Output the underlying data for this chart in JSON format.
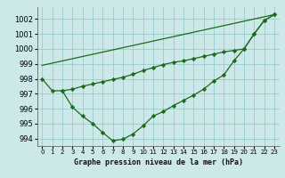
{
  "bg_color": "#cce8e8",
  "grid_color": "#99cccc",
  "line_color": "#1a6b1a",
  "marker_color": "#1a6b1a",
  "xlabel": "Graphe pression niveau de la mer (hPa)",
  "ylim": [
    993.5,
    1002.8
  ],
  "xlim": [
    -0.5,
    23.5
  ],
  "yticks": [
    994,
    995,
    996,
    997,
    998,
    999,
    1000,
    1001,
    1002
  ],
  "xticks": [
    0,
    1,
    2,
    3,
    4,
    5,
    6,
    7,
    8,
    9,
    10,
    11,
    12,
    13,
    14,
    15,
    16,
    17,
    18,
    19,
    20,
    21,
    22,
    23
  ],
  "line1_x": [
    0,
    23
  ],
  "line1_y": [
    998.9,
    1002.3
  ],
  "line2_x": [
    0,
    1,
    2,
    3,
    4,
    5,
    6,
    7,
    8,
    9,
    10,
    11,
    12,
    13,
    14,
    15,
    16,
    17,
    18,
    19,
    20,
    21,
    22,
    23
  ],
  "line2_y": [
    998.0,
    997.2,
    997.2,
    996.1,
    995.5,
    995.0,
    994.4,
    993.85,
    993.95,
    994.3,
    994.85,
    995.5,
    995.8,
    996.2,
    996.55,
    996.9,
    997.3,
    997.85,
    998.25,
    999.2,
    1000.0,
    1001.0,
    1001.9,
    1002.3
  ],
  "line3_x": [
    2,
    3,
    4,
    5,
    6,
    7,
    8,
    9,
    10,
    11,
    12,
    13,
    14,
    15,
    16,
    17,
    18,
    19,
    20,
    21,
    22,
    23
  ],
  "line3_y": [
    997.2,
    997.3,
    997.5,
    997.65,
    997.8,
    997.95,
    998.1,
    998.3,
    998.55,
    998.75,
    998.95,
    999.1,
    999.2,
    999.35,
    999.5,
    999.65,
    999.8,
    999.9,
    1000.0,
    1001.0,
    1001.9,
    1002.3
  ],
  "ytick_fontsize": 6,
  "xtick_fontsize": 5,
  "xlabel_fontsize": 6,
  "linewidth": 0.9,
  "markersize": 2.2
}
